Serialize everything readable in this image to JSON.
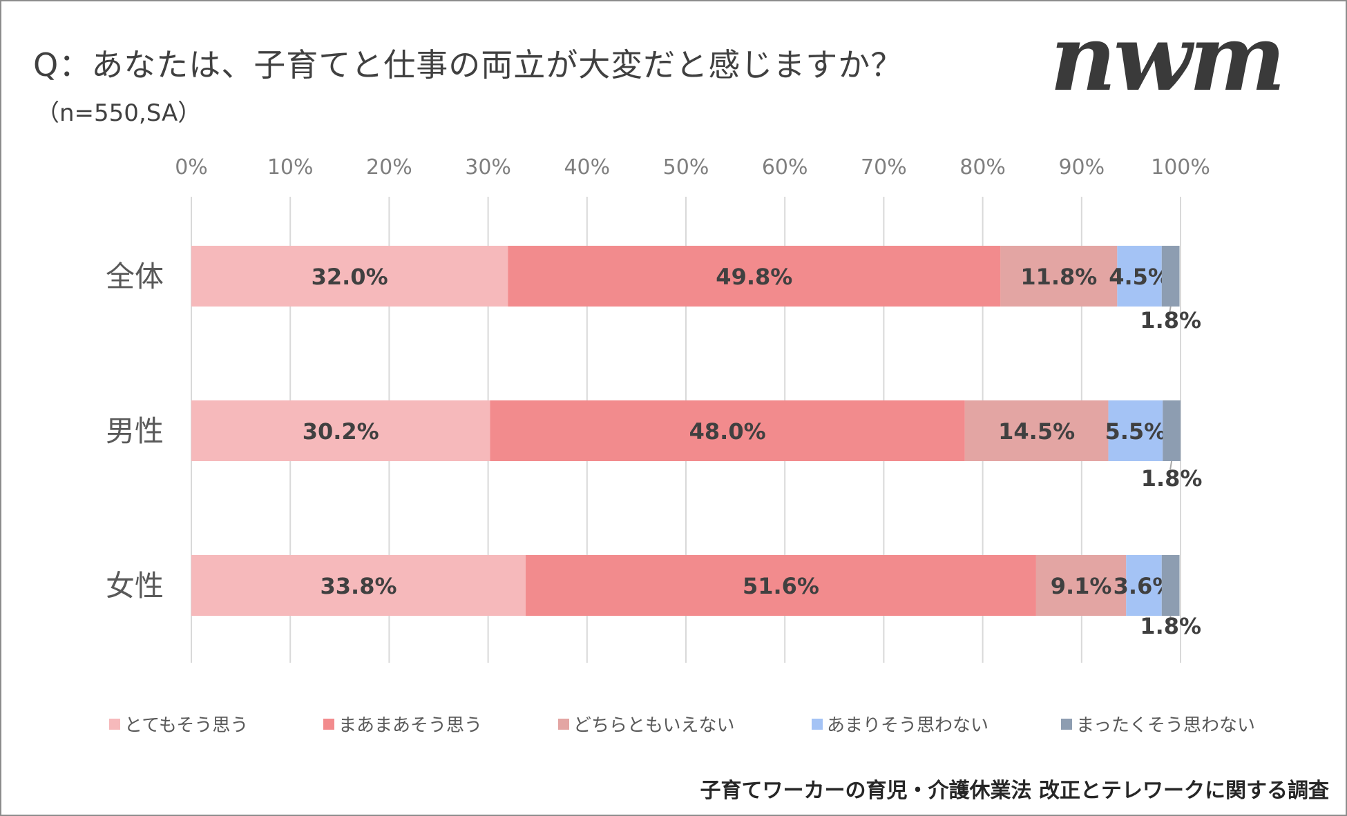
{
  "header": {
    "title": "Q：あなたは、子育てと仕事の両立が大変だと感じますか？",
    "subtitle": "（n=550,SA）",
    "logo_text": "nwm"
  },
  "footer": {
    "source": "子育てワーカーの育児・介護休業法 改正とテレワークに関する調査"
  },
  "chart_data": {
    "type": "bar",
    "orientation": "horizontal",
    "stacked": "100%",
    "categories": [
      "全体",
      "男性",
      "女性"
    ],
    "x_ticks": [
      "0%",
      "10%",
      "20%",
      "30%",
      "40%",
      "50%",
      "60%",
      "70%",
      "80%",
      "90%",
      "100%"
    ],
    "xlim": [
      0,
      100
    ],
    "grid": "vertical",
    "legend_position": "bottom",
    "series": [
      {
        "name": "とてもそう思う",
        "color": "#f6b9bb",
        "values": [
          32.0,
          30.2,
          33.8
        ],
        "labels": [
          "32.0%",
          "30.2%",
          "33.8%"
        ]
      },
      {
        "name": "まあまあそう思う",
        "color": "#f28b8d",
        "values": [
          49.8,
          48.0,
          51.6
        ],
        "labels": [
          "49.8%",
          "48.0%",
          "51.6%"
        ]
      },
      {
        "name": "どちらともいえない",
        "color": "#e3a5a3",
        "values": [
          11.8,
          14.5,
          9.1
        ],
        "labels": [
          "11.8%",
          "14.5%",
          "9.1%"
        ]
      },
      {
        "name": "あまりそう思わない",
        "color": "#a4c3f5",
        "values": [
          4.5,
          5.5,
          3.6
        ],
        "labels": [
          "4.5%",
          "5.5%",
          "3.6%"
        ]
      },
      {
        "name": "まったくそう思わない",
        "color": "#8d9db1",
        "values": [
          1.8,
          1.8,
          1.8
        ],
        "labels": [
          "1.8%",
          "1.8%",
          "1.8%"
        ]
      }
    ]
  }
}
